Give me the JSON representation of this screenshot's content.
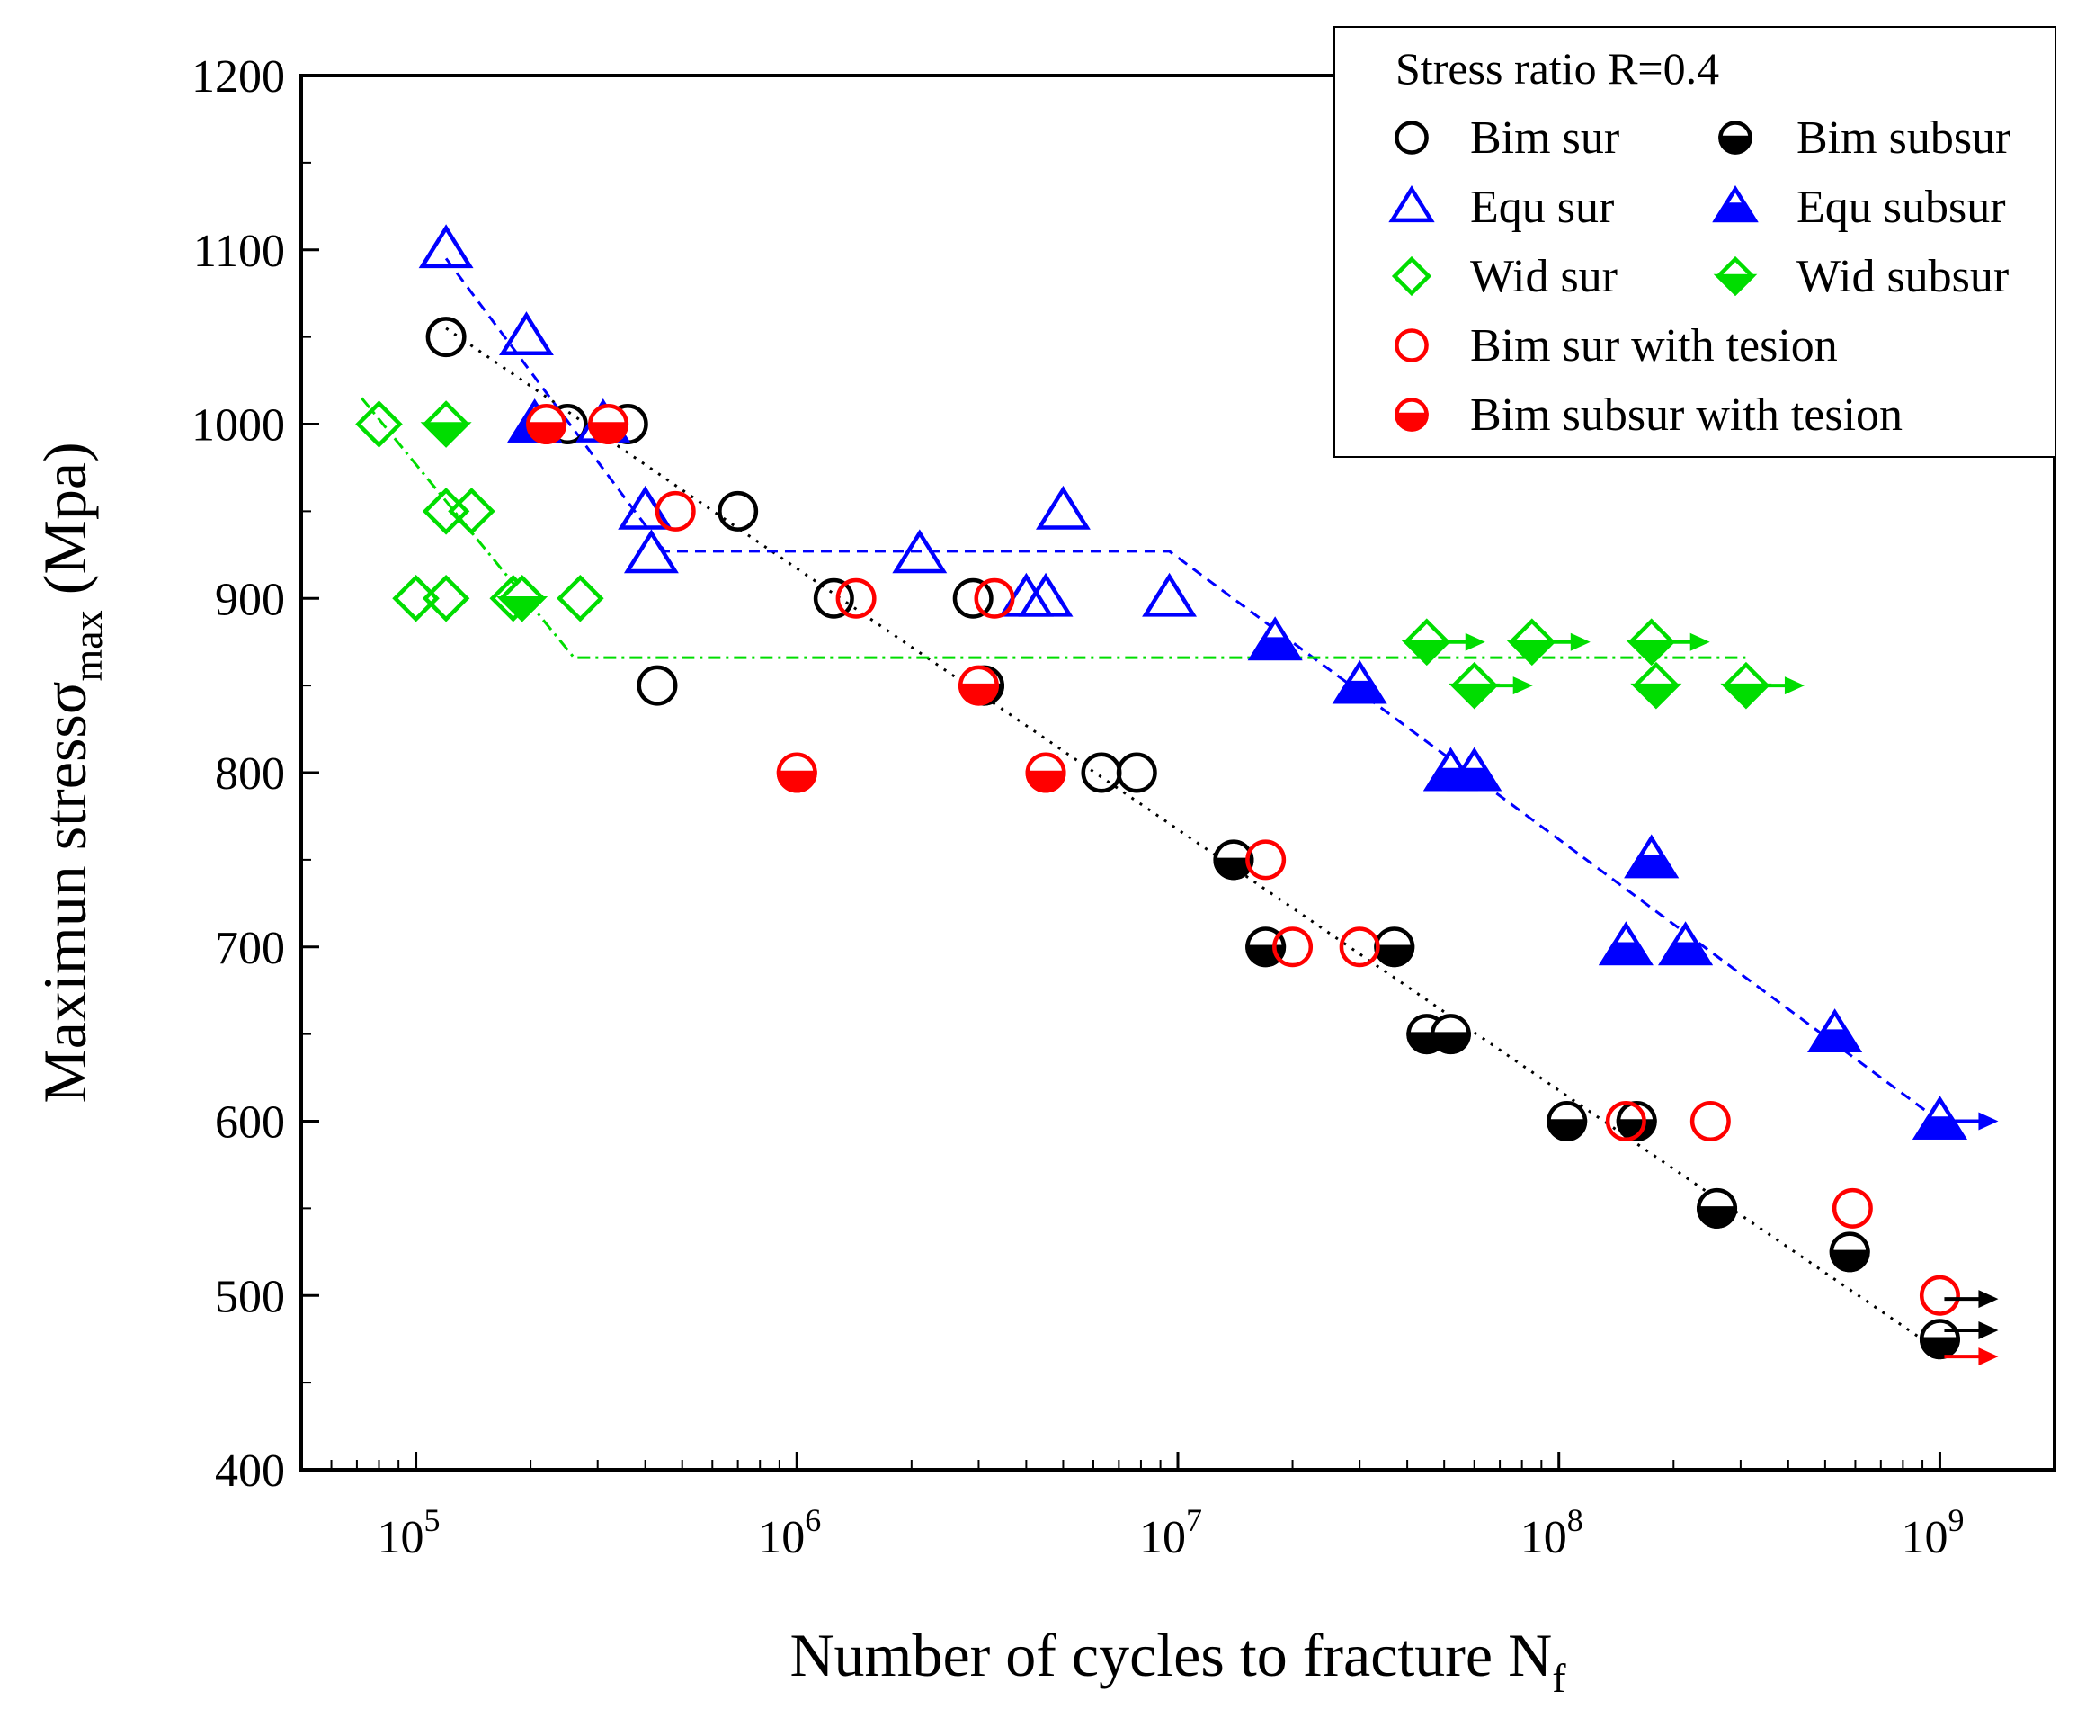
{
  "chart_data": {
    "type": "scatter",
    "title": "",
    "xlabel": "Number of cycles to fracture N",
    "xlabel_sub": "f",
    "ylabel": "Maximun stressσ",
    "ylabel_sub": "max",
    "ylabel_unit": " (Mpa)",
    "x_scale": "log",
    "xlim": [
      50000,
      2000000000
    ],
    "ylim": [
      400,
      1200
    ],
    "x_ticks": [
      {
        "value": 100000,
        "base": "10",
        "exp": "5"
      },
      {
        "value": 1000000,
        "base": "10",
        "exp": "6"
      },
      {
        "value": 10000000,
        "base": "10",
        "exp": "7"
      },
      {
        "value": 100000000,
        "base": "10",
        "exp": "8"
      },
      {
        "value": 1000000000,
        "base": "10",
        "exp": "9"
      }
    ],
    "y_ticks": [
      400,
      500,
      600,
      700,
      800,
      900,
      1000,
      1100,
      1200
    ],
    "legend": {
      "title": "Stress ratio R=0.4",
      "position": "top-right",
      "entries": [
        {
          "key": "bim_sur",
          "label": "Bim sur"
        },
        {
          "key": "bim_subsur",
          "label": "Bim subsur"
        },
        {
          "key": "equ_sur",
          "label": "Equ sur"
        },
        {
          "key": "equ_subsur",
          "label": "Equ subsur"
        },
        {
          "key": "wid_sur",
          "label": "Wid sur"
        },
        {
          "key": "wid_subsur",
          "label": "Wid subsur"
        },
        {
          "key": "bim_sur_t",
          "label": "Bim sur with tesion"
        },
        {
          "key": "bim_subsur_t",
          "label": "Bim subsur with tesion"
        }
      ]
    },
    "series": [
      {
        "key": "bim_sur",
        "name": "Bim sur",
        "marker": "circle-open",
        "color": "#000000",
        "points": [
          [
            120000,
            1050
          ],
          [
            250000,
            1000
          ],
          [
            360000,
            1000
          ],
          [
            430000,
            850
          ],
          [
            700000,
            950
          ],
          [
            1250000,
            900
          ],
          [
            2900000,
            900
          ],
          [
            6300000,
            800
          ],
          [
            7800000,
            800
          ]
        ]
      },
      {
        "key": "bim_subsur",
        "name": "Bim subsur",
        "marker": "circle-half",
        "color": "#000000",
        "points": [
          [
            3100000,
            850
          ],
          [
            14000000,
            750
          ],
          [
            17000000,
            700
          ],
          [
            37000000,
            700
          ],
          [
            45000000,
            650
          ],
          [
            52000000,
            650
          ],
          [
            105000000,
            600
          ],
          [
            160000000,
            600
          ],
          [
            260000000,
            550
          ],
          [
            580000000,
            525
          ],
          [
            1000000000,
            475
          ]
        ]
      },
      {
        "key": "equ_sur",
        "name": "Equ sur",
        "marker": "triangle-open",
        "color": "#0000ff",
        "points": [
          [
            120000,
            1100
          ],
          [
            195000,
            1050
          ],
          [
            310000,
            1000
          ],
          [
            400000,
            950
          ],
          [
            415000,
            925
          ],
          [
            2100000,
            925
          ],
          [
            4000000,
            900
          ],
          [
            4500000,
            900
          ],
          [
            5000000,
            950
          ],
          [
            9500000,
            900
          ]
        ]
      },
      {
        "key": "equ_subsur",
        "name": "Equ subsur",
        "marker": "triangle-half",
        "color": "#0000ff",
        "points": [
          [
            205000,
            1000
          ],
          [
            18000000,
            875
          ],
          [
            30000000,
            850
          ],
          [
            52000000,
            800
          ],
          [
            60000000,
            800
          ],
          [
            150000000,
            700
          ],
          [
            175000000,
            750
          ],
          [
            215000000,
            700
          ],
          [
            530000000,
            650
          ],
          [
            1000000000,
            600
          ]
        ]
      },
      {
        "key": "wid_sur",
        "name": "Wid sur",
        "marker": "diamond-open",
        "color": "#00dd00",
        "points": [
          [
            80000,
            1000
          ],
          [
            100000,
            900
          ],
          [
            120000,
            900
          ],
          [
            120000,
            950
          ],
          [
            140000,
            950
          ],
          [
            180000,
            900
          ],
          [
            270000,
            900
          ]
        ]
      },
      {
        "key": "wid_subsur",
        "name": "Wid subsur",
        "marker": "diamond-half",
        "color": "#00dd00",
        "points": [
          [
            120000,
            1000
          ],
          [
            190000,
            900
          ],
          [
            45000000,
            875
          ],
          [
            60000000,
            850
          ],
          [
            85000000,
            875
          ],
          [
            175000000,
            875
          ],
          [
            180000000,
            850
          ],
          [
            310000000,
            850
          ]
        ]
      },
      {
        "key": "bim_sur_t",
        "name": "Bim sur with tesion",
        "marker": "circle-open",
        "color": "#ff0000",
        "points": [
          [
            480000,
            950
          ],
          [
            1430000,
            900
          ],
          [
            3300000,
            900
          ],
          [
            17000000,
            750
          ],
          [
            20000000,
            700
          ],
          [
            30000000,
            700
          ],
          [
            150000000,
            600
          ],
          [
            250000000,
            600
          ],
          [
            590000000,
            550
          ],
          [
            1000000000,
            500
          ]
        ]
      },
      {
        "key": "bim_subsur_t",
        "name": "Bim subsur with tesion",
        "marker": "circle-half",
        "color": "#ff0000",
        "points": [
          [
            220000,
            1000
          ],
          [
            320000,
            1000
          ],
          [
            1000000,
            800
          ],
          [
            3000000,
            850
          ],
          [
            4500000,
            800
          ]
        ]
      }
    ],
    "runouts": [
      {
        "x": 1000000000,
        "y": 600,
        "color": "#0000ff"
      },
      {
        "x": 1000000000,
        "y": 498,
        "color": "#000000"
      },
      {
        "x": 1000000000,
        "y": 480,
        "color": "#000000"
      },
      {
        "x": 1000000000,
        "y": 465,
        "color": "#ff0000"
      },
      {
        "x": 45000000,
        "y": 875,
        "color": "#00dd00"
      },
      {
        "x": 85000000,
        "y": 875,
        "color": "#00dd00"
      },
      {
        "x": 175000000,
        "y": 875,
        "color": "#00dd00"
      },
      {
        "x": 60000000,
        "y": 850,
        "color": "#00dd00"
      },
      {
        "x": 310000000,
        "y": 850,
        "color": "#00dd00"
      }
    ],
    "fit_lines": [
      {
        "key": "fit-bim",
        "color": "#000000",
        "dash": "3 8",
        "points": [
          [
            120000,
            1055
          ],
          [
            1000000000,
            468
          ]
        ]
      },
      {
        "key": "fit-equ",
        "color": "#0000ff",
        "dash": "12 8",
        "points": [
          [
            120000,
            1095
          ],
          [
            450000,
            927
          ],
          [
            9500000,
            927
          ],
          [
            1000000000,
            600
          ]
        ]
      },
      {
        "key": "fit-wid",
        "color": "#00dd00",
        "dash": "14 6 3 6",
        "points": [
          [
            72000,
            1015
          ],
          [
            260000,
            866
          ],
          [
            310000000,
            866
          ]
        ]
      }
    ]
  }
}
